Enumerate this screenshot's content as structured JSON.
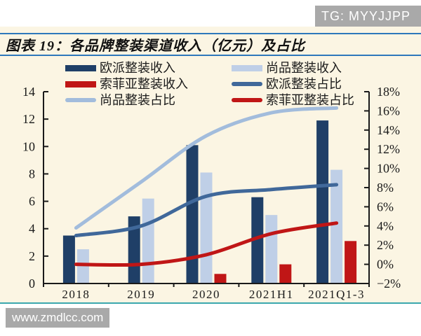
{
  "badge": {
    "text": "TG: MYYJJPP"
  },
  "title": {
    "text": "图表 19：各品牌整装渠道收入（亿元）及占比"
  },
  "watermark": {
    "text": "www.zmdlcc.com"
  },
  "colors": {
    "panel_bg": "#fbf5e3",
    "band_line": "#2e78bb",
    "teal_rule": "#3aa7ae",
    "badge_bg": "#a9a9a9",
    "axis_ink": "#1a1a1a",
    "oupai_bar": "#1f3f67",
    "shangpin_bar": "#bfcfe7",
    "sofia_bar": "#c01616",
    "oupai_line": "#40689a",
    "shangpin_line": "#a2bcdc",
    "sofia_line": "#c01616"
  },
  "legend": {
    "items": [
      {
        "key": "oupai-revenue",
        "label": "欧派整装收入",
        "swatch": "bar",
        "color": "#1f3f67",
        "col": 0,
        "row": 0
      },
      {
        "key": "shangpin-revenue",
        "label": "尚品整装收入",
        "swatch": "bar",
        "color": "#bfcfe7",
        "col": 1,
        "row": 0
      },
      {
        "key": "sofia-revenue",
        "label": "索菲亚整装收入",
        "swatch": "bar",
        "color": "#c01616",
        "col": 0,
        "row": 1
      },
      {
        "key": "oupai-share",
        "label": "欧派整装占比",
        "swatch": "line",
        "color": "#40689a",
        "col": 1,
        "row": 1
      },
      {
        "key": "shangpin-share",
        "label": "尚品整装占比",
        "swatch": "line",
        "color": "#a2bcdc",
        "col": 0,
        "row": 2
      },
      {
        "key": "sofia-share",
        "label": "索菲亚整装占比",
        "swatch": "line",
        "color": "#c01616",
        "col": 1,
        "row": 2
      }
    ]
  },
  "chart_data": {
    "type": "bar",
    "subtype": "combo-bar-line-dual-axis",
    "title": "各品牌整装渠道收入（亿元）及占比",
    "categories": [
      "2018",
      "2019",
      "2020",
      "2021H1",
      "2021Q1-3"
    ],
    "bar_series": [
      {
        "name": "欧派整装收入",
        "axis": "left",
        "color": "#1f3f67",
        "values": [
          3.5,
          4.9,
          10.1,
          6.3,
          11.9
        ]
      },
      {
        "name": "尚品整装收入",
        "axis": "left",
        "color": "#bfcfe7",
        "values": [
          2.5,
          6.2,
          8.1,
          5.0,
          8.3
        ]
      },
      {
        "name": "索菲亚整装收入",
        "axis": "left",
        "color": "#c01616",
        "values": [
          null,
          null,
          0.7,
          1.4,
          3.1
        ]
      }
    ],
    "line_series": [
      {
        "name": "欧派整装占比",
        "axis": "right",
        "color": "#40689a",
        "values": [
          3.0,
          4.0,
          7.1,
          7.8,
          8.3
        ]
      },
      {
        "name": "尚品整装占比",
        "axis": "right",
        "color": "#a2bcdc",
        "values": [
          3.8,
          8.6,
          13.4,
          15.8,
          16.3
        ]
      },
      {
        "name": "索菲亚整装占比",
        "axis": "right",
        "color": "#c01616",
        "values": [
          0.0,
          0.0,
          1.0,
          3.2,
          4.3
        ]
      }
    ],
    "left_axis": {
      "min": 0,
      "max": 14,
      "step": 2,
      "unit": "亿元",
      "labels": [
        "0",
        "2",
        "4",
        "6",
        "8",
        "10",
        "12",
        "14"
      ]
    },
    "right_axis": {
      "min": -2,
      "max": 18,
      "step": 2,
      "unit": "%",
      "labels": [
        "−2%",
        "0%",
        "2%",
        "4%",
        "6%",
        "8%",
        "10%",
        "12%",
        "14%",
        "16%",
        "18%"
      ]
    },
    "grid": false,
    "smooth_lines": true,
    "legend_position": "top"
  }
}
